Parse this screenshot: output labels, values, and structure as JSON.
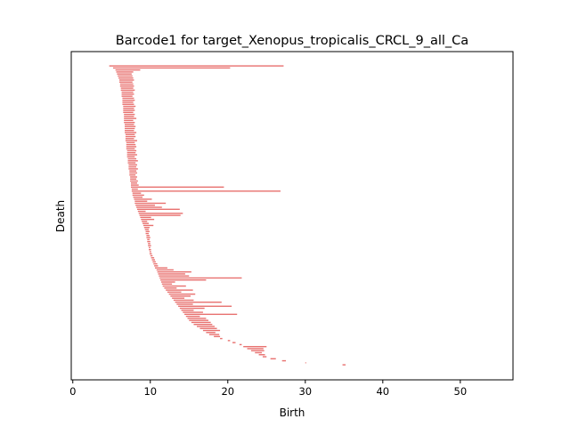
{
  "chart_data": {
    "type": "barcode",
    "title": "Barcode1 for target_Xenopus_tropicalis_CRCL_9_all_Ca",
    "xlabel": "Birth",
    "ylabel": "Death",
    "xlim": [
      -0.2,
      56.8
    ],
    "xticks": [
      0,
      10,
      20,
      30,
      40,
      50
    ],
    "xtick_labels": [
      "0",
      "10",
      "20",
      "30",
      "40",
      "50"
    ],
    "y_axis_ticks": "none",
    "grid": false,
    "bar_color": "#e8716f",
    "bars": [
      [
        4.7,
        27.2
      ],
      [
        5.2,
        20.3
      ],
      [
        5.5,
        8.7
      ],
      [
        5.6,
        7.8
      ],
      [
        5.7,
        7.6
      ],
      [
        5.8,
        7.7
      ],
      [
        5.9,
        7.8
      ],
      [
        6.0,
        7.9
      ],
      [
        6.0,
        7.7
      ],
      [
        6.1,
        7.8
      ],
      [
        6.1,
        7.9
      ],
      [
        6.2,
        7.8
      ],
      [
        6.2,
        8.0
      ],
      [
        6.3,
        7.8
      ],
      [
        6.3,
        7.9
      ],
      [
        6.3,
        7.7
      ],
      [
        6.4,
        7.9
      ],
      [
        6.4,
        8.0
      ],
      [
        6.4,
        7.8
      ],
      [
        6.4,
        7.9
      ],
      [
        6.5,
        8.1
      ],
      [
        6.5,
        7.9
      ],
      [
        6.5,
        8.0
      ],
      [
        6.5,
        7.8
      ],
      [
        6.6,
        8.0
      ],
      [
        6.6,
        7.9
      ],
      [
        6.6,
        8.2
      ],
      [
        6.6,
        7.8
      ],
      [
        6.6,
        8.0
      ],
      [
        6.7,
        7.9
      ],
      [
        6.7,
        8.1
      ],
      [
        6.7,
        8.0
      ],
      [
        6.7,
        7.9
      ],
      [
        6.7,
        8.2
      ],
      [
        6.8,
        8.0
      ],
      [
        6.8,
        8.1
      ],
      [
        6.8,
        7.9
      ],
      [
        6.8,
        8.3
      ],
      [
        6.9,
        8.0
      ],
      [
        6.9,
        8.1
      ],
      [
        6.9,
        8.2
      ],
      [
        6.9,
        8.0
      ],
      [
        7.0,
        8.2
      ],
      [
        7.0,
        8.1
      ],
      [
        7.0,
        8.3
      ],
      [
        7.0,
        8.0
      ],
      [
        7.1,
        8.2
      ],
      [
        7.1,
        8.4
      ],
      [
        7.1,
        8.1
      ],
      [
        7.2,
        8.3
      ],
      [
        7.2,
        8.2
      ],
      [
        7.2,
        8.4
      ],
      [
        7.3,
        8.2
      ],
      [
        7.3,
        8.3
      ],
      [
        7.3,
        8.1
      ],
      [
        7.4,
        8.3
      ],
      [
        7.4,
        8.2
      ],
      [
        7.4,
        8.4
      ],
      [
        7.5,
        8.3
      ],
      [
        7.5,
        8.5
      ],
      [
        7.5,
        19.5
      ],
      [
        7.6,
        8.4
      ],
      [
        7.6,
        26.8
      ],
      [
        7.7,
        8.8
      ],
      [
        7.7,
        9.2
      ],
      [
        7.8,
        9.0
      ],
      [
        7.9,
        10.2
      ],
      [
        8.0,
        9.6
      ],
      [
        8.0,
        12.0
      ],
      [
        8.1,
        10.6
      ],
      [
        8.2,
        11.5
      ],
      [
        8.3,
        13.8
      ],
      [
        8.4,
        9.4
      ],
      [
        8.5,
        14.2
      ],
      [
        8.6,
        13.9
      ],
      [
        8.7,
        10.1
      ],
      [
        8.8,
        10.5
      ],
      [
        8.9,
        9.6
      ],
      [
        9.0,
        9.8
      ],
      [
        9.1,
        10.4
      ],
      [
        9.2,
        9.9
      ],
      [
        9.3,
        9.8
      ],
      [
        9.4,
        9.9
      ],
      [
        9.4,
        9.8
      ],
      [
        9.5,
        9.9
      ],
      [
        9.5,
        10.0
      ],
      [
        9.6,
        9.9
      ],
      [
        9.6,
        10.0
      ],
      [
        9.7,
        10.0
      ],
      [
        9.7,
        10.1
      ],
      [
        9.8,
        10.0
      ],
      [
        9.8,
        10.1
      ],
      [
        9.9,
        10.1
      ],
      [
        9.9,
        10.2
      ],
      [
        10.0,
        10.3
      ],
      [
        10.1,
        10.5
      ],
      [
        10.2,
        10.6
      ],
      [
        10.3,
        10.7
      ],
      [
        10.4,
        10.9
      ],
      [
        10.5,
        11.0
      ],
      [
        10.6,
        12.2
      ],
      [
        10.8,
        13.0
      ],
      [
        10.9,
        15.3
      ],
      [
        11.0,
        14.5
      ],
      [
        11.1,
        15.0
      ],
      [
        11.2,
        21.8
      ],
      [
        11.3,
        17.2
      ],
      [
        11.4,
        13.2
      ],
      [
        11.5,
        12.8
      ],
      [
        11.6,
        14.6
      ],
      [
        11.8,
        13.4
      ],
      [
        12.0,
        15.5
      ],
      [
        12.2,
        14.0
      ],
      [
        12.4,
        15.8
      ],
      [
        12.6,
        15.2
      ],
      [
        12.8,
        14.4
      ],
      [
        13.0,
        15.6
      ],
      [
        13.2,
        19.2
      ],
      [
        13.4,
        15.5
      ],
      [
        13.6,
        20.5
      ],
      [
        13.8,
        17.0
      ],
      [
        14.0,
        15.6
      ],
      [
        14.2,
        16.8
      ],
      [
        14.4,
        21.2
      ],
      [
        14.6,
        16.4
      ],
      [
        14.8,
        17.2
      ],
      [
        15.0,
        17.5
      ],
      [
        15.3,
        17.8
      ],
      [
        15.6,
        18.0
      ],
      [
        16.0,
        18.3
      ],
      [
        16.4,
        18.6
      ],
      [
        16.8,
        19.0
      ],
      [
        17.2,
        18.4
      ],
      [
        17.6,
        18.9
      ],
      [
        18.2,
        19.0
      ],
      [
        19.0,
        19.3
      ],
      [
        20.0,
        20.3
      ],
      [
        20.6,
        21.0
      ],
      [
        21.5,
        21.8
      ],
      [
        22.0,
        25.0
      ],
      [
        22.5,
        24.6
      ],
      [
        23.0,
        24.7
      ],
      [
        23.5,
        24.4
      ],
      [
        24.0,
        24.8
      ],
      [
        24.5,
        25.0
      ],
      [
        25.5,
        26.2
      ],
      [
        27.0,
        27.5
      ],
      [
        30.0,
        30.1
      ],
      [
        34.8,
        35.2
      ]
    ]
  }
}
